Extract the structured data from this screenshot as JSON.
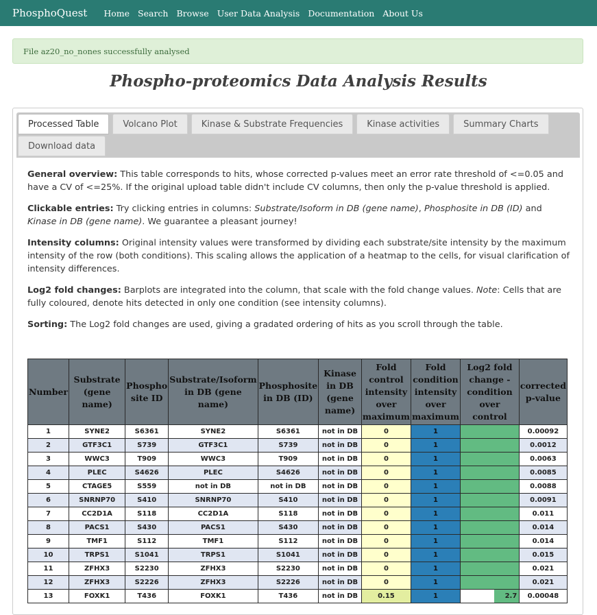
{
  "navbar": {
    "brand": "PhosphoQuest",
    "links": [
      "Home",
      "Search",
      "Browse",
      "User Data Analysis",
      "Documentation",
      "About Us"
    ]
  },
  "alert": {
    "text": "File az20_no_nones successfully analysed"
  },
  "page": {
    "title": "Phospho-proteomics Data Analysis Results"
  },
  "tabs": [
    {
      "label": "Processed Table",
      "active": true
    },
    {
      "label": "Volcano Plot"
    },
    {
      "label": "Kinase & Substrate Frequencies"
    },
    {
      "label": "Kinase activities"
    },
    {
      "label": "Summary Charts"
    },
    {
      "label": "Download data"
    }
  ],
  "info": {
    "general_title": "General overview:",
    "general_text": " This table corresponds to hits, whose corrected p-values meet an error rate threshold of <=0.05 and have a CV of <=25%. If the original upload table didn't include CV columns, then only the p-value threshold is applied.",
    "clickable_title": "Clickable entries:",
    "clickable_pre": " Try clicking entries in columns: ",
    "clickable_col1": "Substrate/Isoform in DB (gene name)",
    "clickable_sep1": ", ",
    "clickable_col2": "Phosphosite in DB (ID)",
    "clickable_and": " and ",
    "clickable_col3": "Kinase in DB (gene name)",
    "clickable_post": ". We guarantee a pleasant journey!",
    "intensity_title": "Intensity columns:",
    "intensity_text": " Original intensity values were transformed by dividing each substrate/site intensity by the maximum intensity of the row (both conditions). This scaling allows the application of a heatmap to the cells, for visual clarification of intensity differences.",
    "log2_title": "Log2 fold changes:",
    "log2_pre": " Barplots are integrated into the column, that scale with the fold change values. ",
    "log2_note": "Note",
    "log2_post": ": Cells that are fully coloured, denote hits detected in only one condition (see intensity columns).",
    "sorting_title": "Sorting:",
    "sorting_text": " The Log2 fold changes are used, giving a gradated ordering of hits as you scroll through the table."
  },
  "table": {
    "headers": [
      "Number",
      "Substrate (gene name)",
      "Phospho site ID",
      "Substrate/Isoform in DB (gene name)",
      "Phosphosite in DB (ID)",
      "Kinase in DB (gene name)",
      "Fold control intensity over maximum",
      "Fold condition intensity over maximum",
      "Log2 fold change - condition over control",
      "corrected p-value"
    ],
    "rows": [
      {
        "number": "1",
        "substrate": "SYNE2",
        "site": "S6361",
        "substrate_db": "SYNE2",
        "site_db": "S6361",
        "kinase": "not in DB",
        "control": "0",
        "condition": "1",
        "log2fc": "",
        "log2fc_fill": 1.0,
        "pvalue": "0.00092"
      },
      {
        "number": "2",
        "substrate": "GTF3C1",
        "site": "S739",
        "substrate_db": "GTF3C1",
        "site_db": "S739",
        "kinase": "not in DB",
        "control": "0",
        "condition": "1",
        "log2fc": "",
        "log2fc_fill": 1.0,
        "pvalue": "0.0012"
      },
      {
        "number": "3",
        "substrate": "WWC3",
        "site": "T909",
        "substrate_db": "WWC3",
        "site_db": "T909",
        "kinase": "not in DB",
        "control": "0",
        "condition": "1",
        "log2fc": "",
        "log2fc_fill": 1.0,
        "pvalue": "0.0063"
      },
      {
        "number": "4",
        "substrate": "PLEC",
        "site": "S4626",
        "substrate_db": "PLEC",
        "site_db": "S4626",
        "kinase": "not in DB",
        "control": "0",
        "condition": "1",
        "log2fc": "",
        "log2fc_fill": 1.0,
        "pvalue": "0.0085"
      },
      {
        "number": "5",
        "substrate": "CTAGE5",
        "site": "S559",
        "substrate_db": "not in DB",
        "site_db": "not in DB",
        "kinase": "not in DB",
        "control": "0",
        "condition": "1",
        "log2fc": "",
        "log2fc_fill": 1.0,
        "pvalue": "0.0088"
      },
      {
        "number": "6",
        "substrate": "SNRNP70",
        "site": "S410",
        "substrate_db": "SNRNP70",
        "site_db": "S410",
        "kinase": "not in DB",
        "control": "0",
        "condition": "1",
        "log2fc": "",
        "log2fc_fill": 1.0,
        "pvalue": "0.0091"
      },
      {
        "number": "7",
        "substrate": "CC2D1A",
        "site": "S118",
        "substrate_db": "CC2D1A",
        "site_db": "S118",
        "kinase": "not in DB",
        "control": "0",
        "condition": "1",
        "log2fc": "",
        "log2fc_fill": 1.0,
        "pvalue": "0.011"
      },
      {
        "number": "8",
        "substrate": "PACS1",
        "site": "S430",
        "substrate_db": "PACS1",
        "site_db": "S430",
        "kinase": "not in DB",
        "control": "0",
        "condition": "1",
        "log2fc": "",
        "log2fc_fill": 1.0,
        "pvalue": "0.014"
      },
      {
        "number": "9",
        "substrate": "TMF1",
        "site": "S112",
        "substrate_db": "TMF1",
        "site_db": "S112",
        "kinase": "not in DB",
        "control": "0",
        "condition": "1",
        "log2fc": "",
        "log2fc_fill": 1.0,
        "pvalue": "0.014"
      },
      {
        "number": "10",
        "substrate": "TRPS1",
        "site": "S1041",
        "substrate_db": "TRPS1",
        "site_db": "S1041",
        "kinase": "not in DB",
        "control": "0",
        "condition": "1",
        "log2fc": "",
        "log2fc_fill": 1.0,
        "pvalue": "0.015"
      },
      {
        "number": "11",
        "substrate": "ZFHX3",
        "site": "S2230",
        "substrate_db": "ZFHX3",
        "site_db": "S2230",
        "kinase": "not in DB",
        "control": "0",
        "condition": "1",
        "log2fc": "",
        "log2fc_fill": 1.0,
        "pvalue": "0.021"
      },
      {
        "number": "12",
        "substrate": "ZFHX3",
        "site": "S2226",
        "substrate_db": "ZFHX3",
        "site_db": "S2226",
        "kinase": "not in DB",
        "control": "0",
        "condition": "1",
        "log2fc": "",
        "log2fc_fill": 1.0,
        "pvalue": "0.021"
      },
      {
        "number": "13",
        "substrate": "FOXK1",
        "site": "T436",
        "substrate_db": "FOXK1",
        "site_db": "T436",
        "kinase": "not in DB",
        "control": "0.15",
        "condition": "1",
        "log2fc": "2.7",
        "log2fc_fill": 0.42,
        "pvalue": "0.00048"
      }
    ]
  },
  "colors": {
    "navbar": "#2a7b73",
    "alert_bg": "#dff0d8",
    "header_bg": "#6f7a82",
    "row_even": "#e0e6f2",
    "control_heat": "#ffffcc",
    "condition_heat": "#2b7fb7",
    "log2_bar": "#62bb82"
  }
}
